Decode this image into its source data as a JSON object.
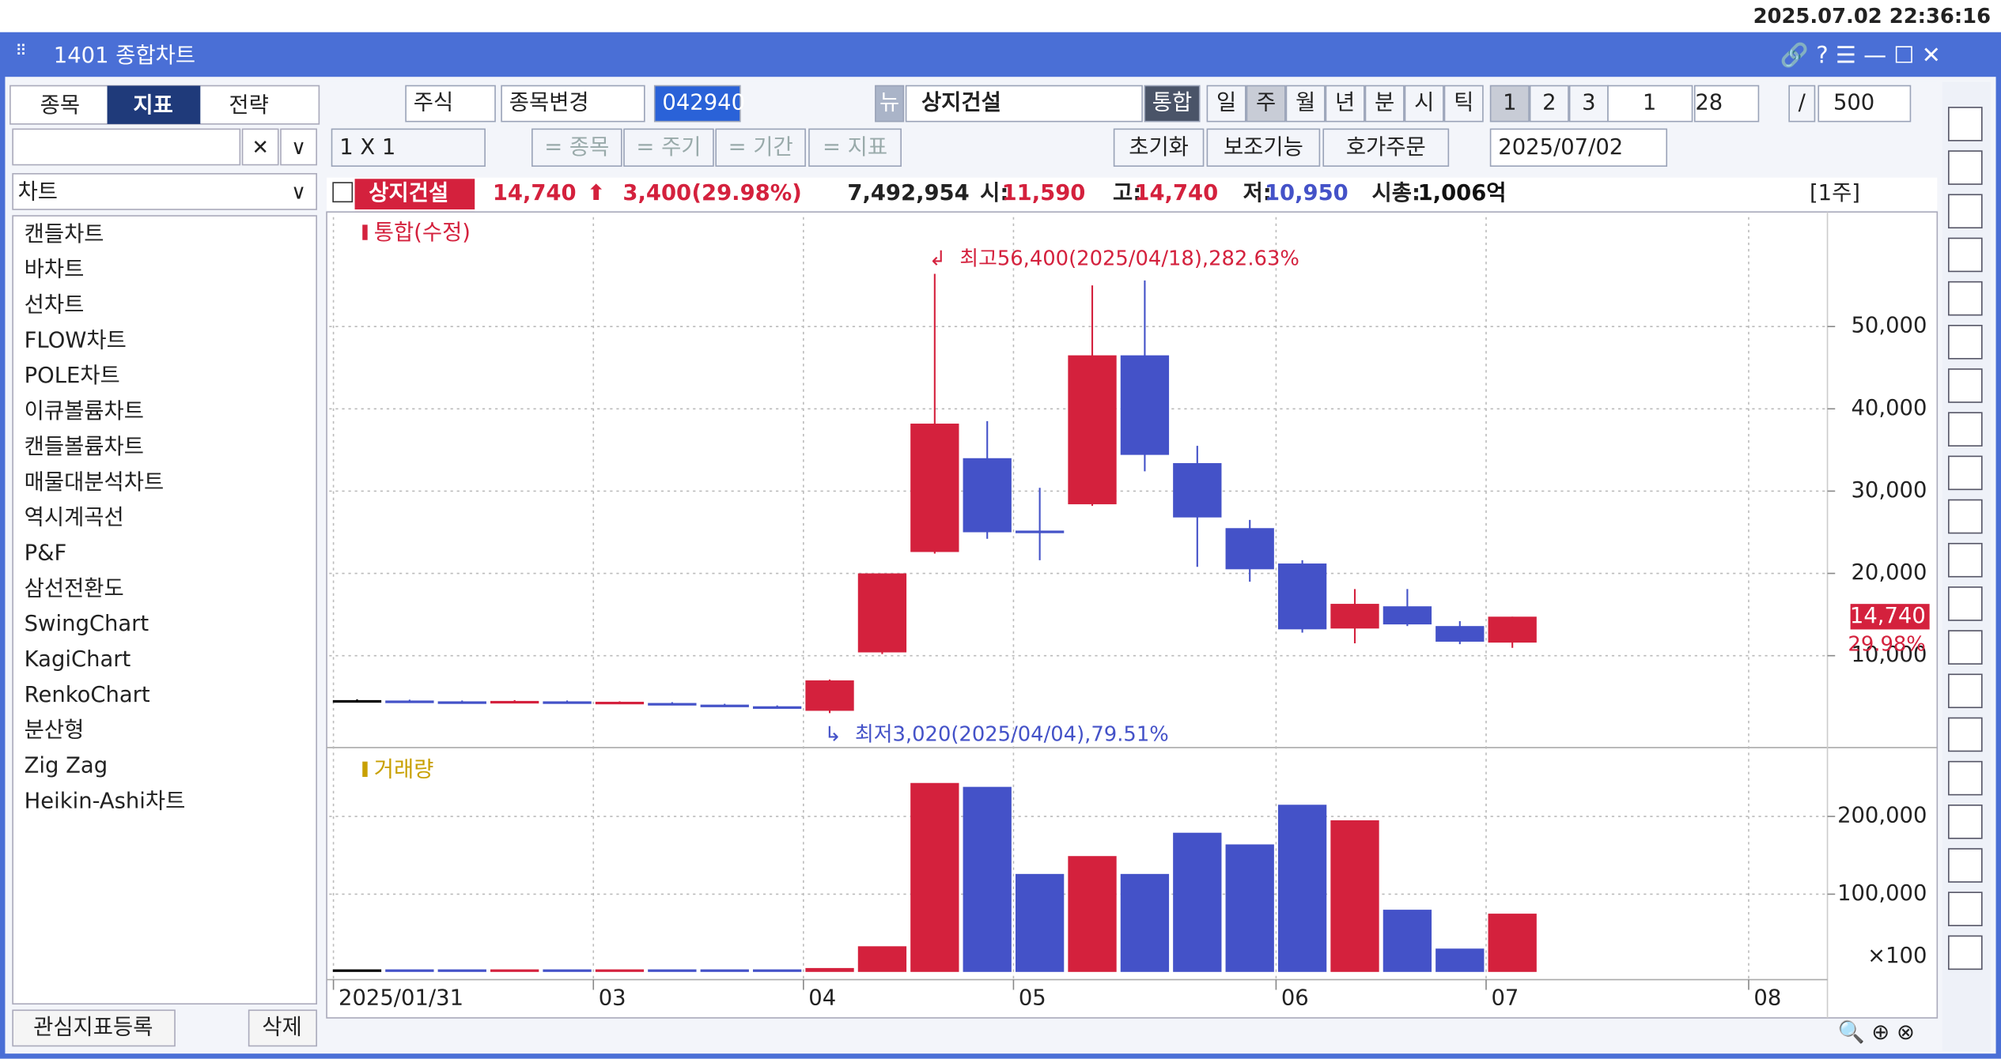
{
  "clock": "2025.07.02 22:36:16",
  "window_title": "1401 종합차트",
  "sidebar": {
    "tabs": [
      "종목",
      "지표",
      "전략"
    ],
    "dropdown": "차트",
    "items": [
      "캔들차트",
      "바차트",
      "선차트",
      "FLOW차트",
      "POLE차트",
      "이큐볼륨차트",
      "캔들볼륨차트",
      "매물대분석차트",
      "역시계곡선",
      "P&F",
      "삼선전환도",
      "SwingChart",
      "KagiChart",
      "RenkoChart",
      "분산형",
      "Zig Zag",
      "Heikin-Ashi차트"
    ],
    "buttons": [
      "관심지표등록",
      "삭제"
    ]
  },
  "toolbar": {
    "row1": [
      "주식",
      "종목변경",
      "042940",
      "뉴",
      "상지건설",
      "통합",
      "일",
      "주",
      "월",
      "년",
      "분",
      "시",
      "틱",
      "1",
      "2",
      "3",
      "1",
      "28",
      "/",
      "500"
    ],
    "row2": [
      "1 X 1",
      "= 종목",
      "= 주기",
      "= 기간",
      "= 지표",
      "초기화",
      "보조기능",
      "호가주문",
      "2025/07/02"
    ]
  },
  "quote": {
    "name": "상지건설",
    "price": "14,740",
    "change": "3,400",
    "rate": "(29.98%)",
    "volume": "7,492,954",
    "open": {
      "label": "시:",
      "value": "11,590"
    },
    "high": {
      "label": "고:",
      "value": "14,740"
    },
    "low": {
      "label": "저:",
      "value": "10,950"
    },
    "cap": {
      "label": "시총:",
      "value": "1,006억"
    },
    "period": "[1주]"
  },
  "chart_data": [
    {
      "type": "candlestick",
      "legend": "통합(수정)",
      "up_color": "#d4213d",
      "down_color": "#4452c8",
      "flat_color": "#000000",
      "open": [
        4600,
        4550,
        4450,
        4400,
        4450,
        4350,
        4250,
        4050,
        3850,
        3300,
        10400,
        22600,
        34000,
        25200,
        28400,
        46500,
        33400,
        25500,
        21200,
        13300,
        16000,
        13600,
        11590
      ],
      "high": [
        4700,
        4650,
        4550,
        4600,
        4550,
        4450,
        4350,
        4150,
        3950,
        7100,
        20000,
        56400,
        38500,
        30400,
        55000,
        55600,
        35500,
        26500,
        21600,
        18100,
        18100,
        14200,
        14740
      ],
      "low": [
        4500,
        4400,
        4300,
        4350,
        4300,
        4250,
        4100,
        3900,
        3700,
        3020,
        10200,
        22400,
        24200,
        21600,
        28200,
        32400,
        20800,
        19000,
        12800,
        11500,
        13600,
        11400,
        10950
      ],
      "close": [
        4600,
        4450,
        4350,
        4500,
        4350,
        4400,
        4150,
        3950,
        3800,
        7000,
        20000,
        38200,
        25000,
        25000,
        46500,
        34400,
        26800,
        20500,
        13200,
        16300,
        13800,
        11700,
        14740
      ],
      "xlim": [
        -0.53,
        28
      ],
      "xticks": [
        {
          "value": -0.45,
          "label": "2025/01/31"
        },
        {
          "value": 4.5,
          "label": "03"
        },
        {
          "value": 8.5,
          "label": "04"
        },
        {
          "value": 12.5,
          "label": "05"
        },
        {
          "value": 17.5,
          "label": "06"
        },
        {
          "value": 21.5,
          "label": "07"
        },
        {
          "value": 26.5,
          "label": "08"
        }
      ],
      "ylim": [
        -700,
        63300
      ],
      "yticks": [
        {
          "value": 10000,
          "label": "10,000"
        },
        {
          "value": 20000,
          "label": "20,000"
        },
        {
          "value": 30000,
          "label": "30,000"
        },
        {
          "value": 40000,
          "label": "40,000"
        },
        {
          "value": 50000,
          "label": "50,000"
        }
      ],
      "annotations": [
        "최고56,400(2025/04/18),282.63%",
        "최저3,020(2025/04/04),79.51%"
      ],
      "last_labels": [
        "14,740",
        "29.98%"
      ],
      "grid": true
    },
    {
      "type": "bar",
      "legend": "거래량",
      "unit": "×100",
      "values": [
        2500,
        2200,
        2000,
        2300,
        2100,
        2000,
        1900,
        2200,
        2400,
        5000,
        33000,
        243000,
        238000,
        126000,
        149000,
        126000,
        179000,
        164000,
        215000,
        195000,
        80000,
        30000,
        74930
      ],
      "ylim": [
        -5000,
        282000
      ],
      "yticks": [
        {
          "value": 100000,
          "label": "100,000"
        },
        {
          "value": 200000,
          "label": "200,000"
        }
      ],
      "grid": true
    }
  ]
}
